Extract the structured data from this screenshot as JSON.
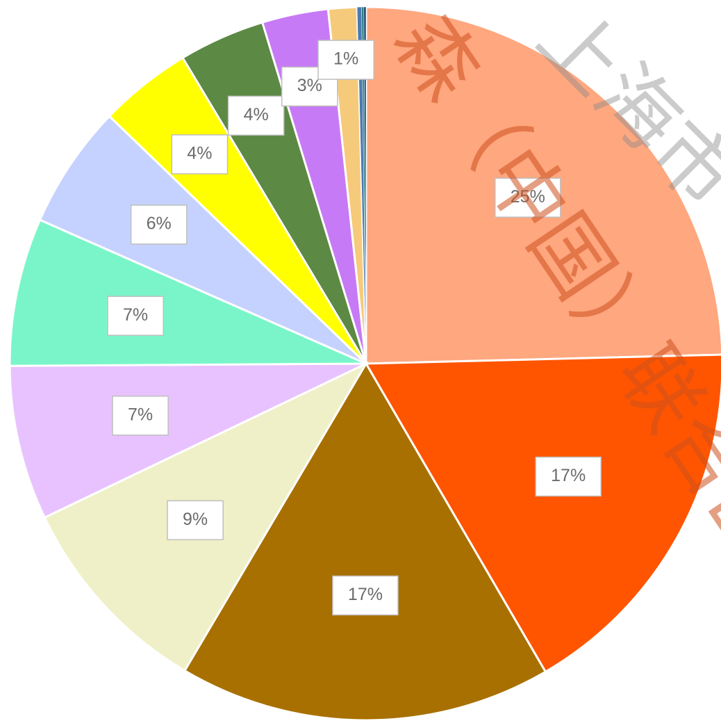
{
  "chart_data": {
    "type": "pie",
    "values": [
      24.6,
      17,
      16.9,
      9.4,
      7,
      6.7,
      5.6,
      4.2,
      3.9,
      3.0,
      1.3,
      0.2,
      0.1,
      0.1
    ],
    "value_labels": [
      "25%",
      "17%",
      "17%",
      "9%",
      "7%",
      "7%",
      "6%",
      "4%",
      "4%",
      "3%",
      "1%",
      null,
      null,
      null
    ],
    "colors": [
      "#ffa77f",
      "#ff5500",
      "#a87000",
      "#f0f0c8",
      "#e8c2ff",
      "#7af5ca",
      "#c5d2ff",
      "#ffff00",
      "#5c8944",
      "#c77af5",
      "#f5ca7a",
      "#4a7ab0",
      "#2f7f7f",
      "#1f4e79"
    ],
    "watermark": [
      "森（中国）联合出",
      "上海市"
    ]
  }
}
